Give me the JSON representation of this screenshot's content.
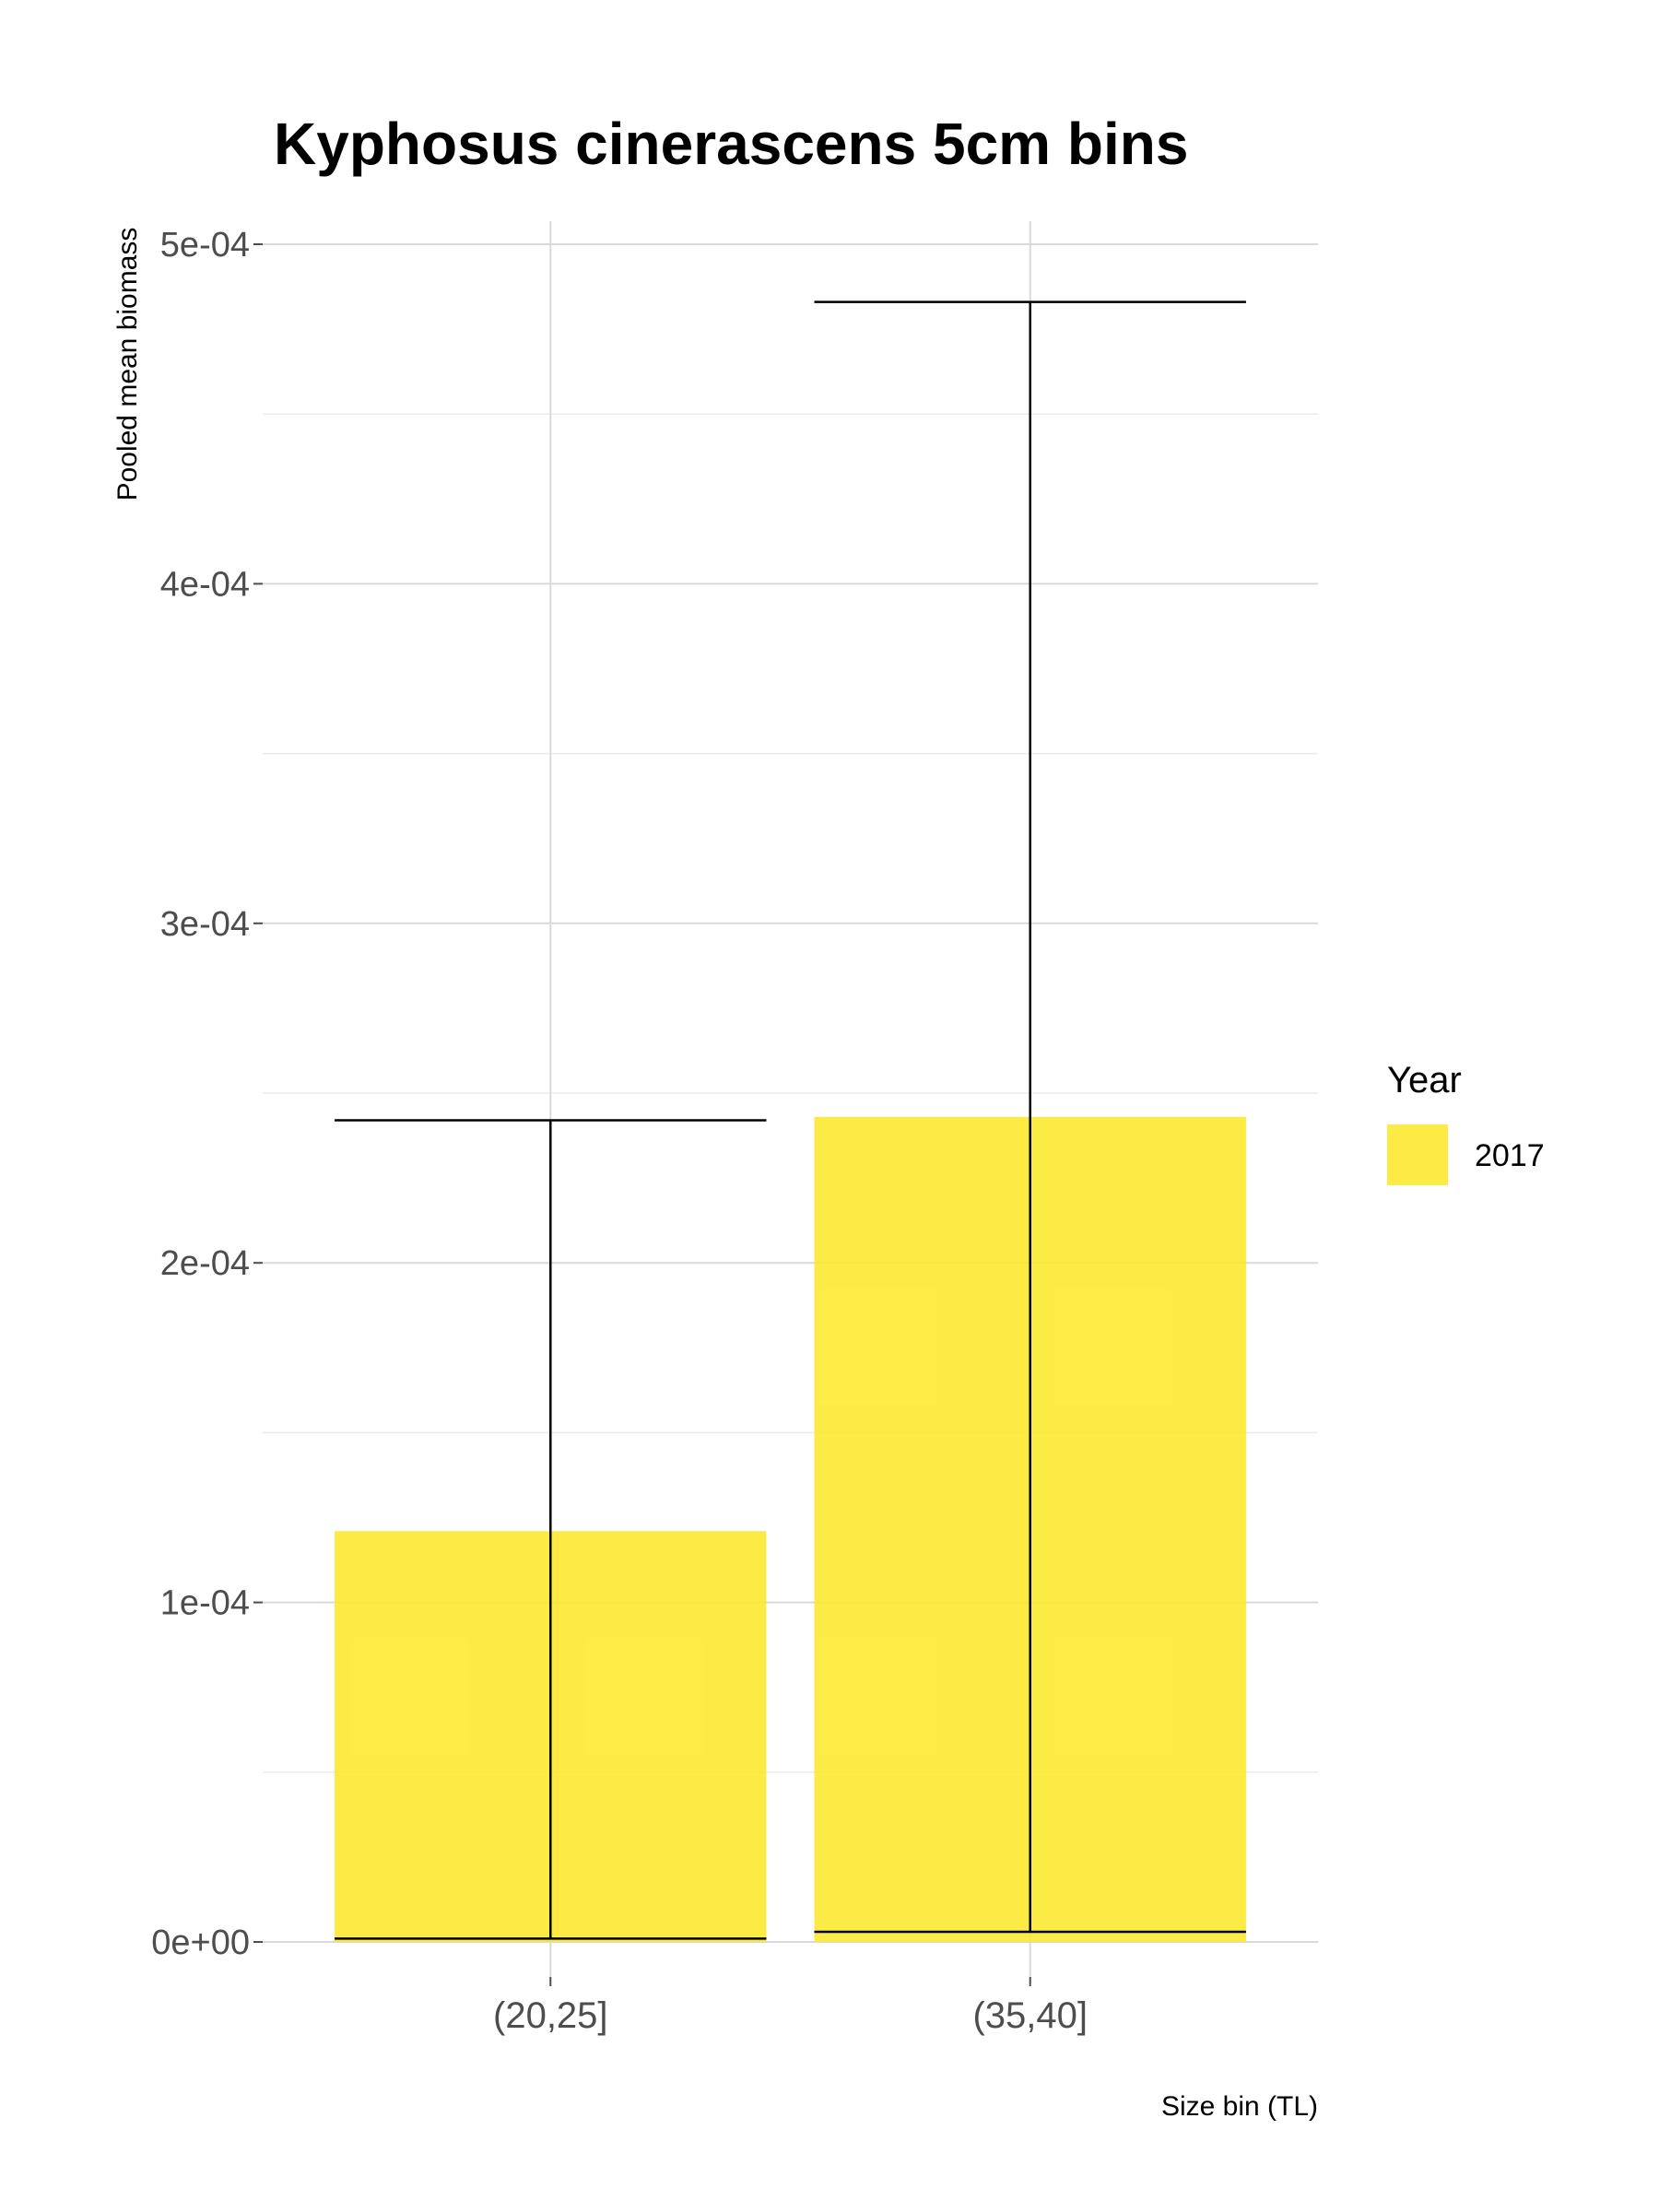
{
  "chart_data": {
    "type": "bar",
    "title": "Kyphosus cinerascens 5cm bins",
    "xlabel": "Size bin (TL)",
    "ylabel": "Pooled mean biomass",
    "categories": [
      "(20,25]",
      "(35,40]"
    ],
    "series": [
      {
        "name": "2017",
        "values": [
          0.000121,
          0.000243
        ],
        "color": "#FDE725",
        "error_low": [
          1e-06,
          3e-06
        ],
        "error_high": [
          0.000242,
          0.000483
        ]
      }
    ],
    "ylim": [
      0,
      0.0005
    ],
    "y_ticks": [
      {
        "value": 0,
        "label": "0e+00"
      },
      {
        "value": 0.0001,
        "label": "1e-04"
      },
      {
        "value": 0.0002,
        "label": "2e-04"
      },
      {
        "value": 0.0003,
        "label": "3e-04"
      },
      {
        "value": 0.0004,
        "label": "4e-04"
      },
      {
        "value": 0.0005,
        "label": "5e-04"
      }
    ],
    "y_minor_ticks": [
      5e-05,
      0.00015,
      0.00025,
      0.00035,
      0.00045
    ],
    "legend": {
      "title": "Year",
      "position": "right",
      "entries": [
        {
          "label": "2017",
          "color": "#FDE725"
        }
      ]
    },
    "grid": true
  }
}
